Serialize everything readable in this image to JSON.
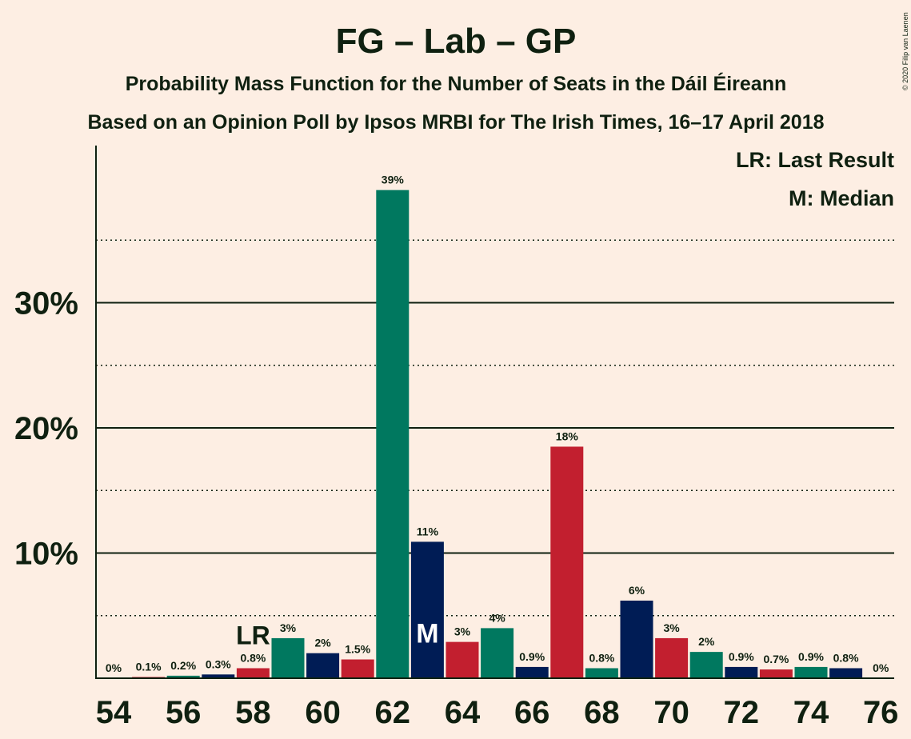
{
  "chart_data": {
    "type": "bar",
    "title": "FG – Lab – GP",
    "subtitle_1": "Probability Mass Function for the Number of Seats in the Dáil Éireann",
    "subtitle_2": "Based on an Opinion Poll by Ipsos MRBI for The Irish Times, 16–17 April 2018",
    "copyright": "© 2020 Filip van Laenen",
    "legend": {
      "lr": "LR: Last Result",
      "m": "M: Median",
      "placement": "top-right"
    },
    "ylim": [
      0,
      42
    ],
    "y_major_ticks": [
      10,
      20,
      30
    ],
    "y_major_labels": [
      "10%",
      "20%",
      "30%"
    ],
    "y_minor_ticks": [
      5,
      15,
      25,
      35
    ],
    "x_ticks": [
      54,
      56,
      58,
      60,
      62,
      64,
      66,
      68,
      70,
      72,
      74,
      76
    ],
    "x_tick_labels": [
      "54",
      "56",
      "58",
      "60",
      "62",
      "64",
      "66",
      "68",
      "70",
      "72",
      "74",
      "76"
    ],
    "bars": [
      {
        "x": 54,
        "value": 0,
        "label": "0%",
        "color": "#00785F"
      },
      {
        "x": 55,
        "value": 0.1,
        "label": "0.1%",
        "color": "#C21F2F"
      },
      {
        "x": 56,
        "value": 0.2,
        "label": "0.2%",
        "color": "#00785F"
      },
      {
        "x": 57,
        "value": 0.3,
        "label": "0.3%",
        "color": "#001C55"
      },
      {
        "x": 58,
        "value": 0.8,
        "label": "0.8%",
        "color": "#C21F2F"
      },
      {
        "x": 59,
        "value": 3.2,
        "label": "3%",
        "color": "#00785F"
      },
      {
        "x": 60,
        "value": 2.0,
        "label": "2%",
        "color": "#001C55"
      },
      {
        "x": 61,
        "value": 1.5,
        "label": "1.5%",
        "color": "#C21F2F"
      },
      {
        "x": 62,
        "value": 39.0,
        "label": "39%",
        "color": "#00785F"
      },
      {
        "x": 63,
        "value": 10.9,
        "label": "11%",
        "color": "#001C55"
      },
      {
        "x": 64,
        "value": 2.9,
        "label": "3%",
        "color": "#C21F2F"
      },
      {
        "x": 65,
        "value": 4.0,
        "label": "4%",
        "color": "#00785F"
      },
      {
        "x": 66,
        "value": 0.9,
        "label": "0.9%",
        "color": "#001C55"
      },
      {
        "x": 67,
        "value": 18.5,
        "label": "18%",
        "color": "#C21F2F"
      },
      {
        "x": 68,
        "value": 0.8,
        "label": "0.8%",
        "color": "#00785F"
      },
      {
        "x": 69,
        "value": 6.2,
        "label": "6%",
        "color": "#001C55"
      },
      {
        "x": 70,
        "value": 3.2,
        "label": "3%",
        "color": "#C21F2F"
      },
      {
        "x": 71,
        "value": 2.1,
        "label": "2%",
        "color": "#00785F"
      },
      {
        "x": 72,
        "value": 0.9,
        "label": "0.9%",
        "color": "#001C55"
      },
      {
        "x": 73,
        "value": 0.7,
        "label": "0.7%",
        "color": "#C21F2F"
      },
      {
        "x": 74,
        "value": 0.9,
        "label": "0.9%",
        "color": "#00785F"
      },
      {
        "x": 75,
        "value": 0.8,
        "label": "0.8%",
        "color": "#001C55"
      },
      {
        "x": 76,
        "value": 0,
        "label": "0%",
        "color": "#C21F2F"
      }
    ],
    "last_result": {
      "x": 58,
      "marker": "LR"
    },
    "median": {
      "x": 63,
      "marker": "M"
    },
    "grid": true,
    "colors": {
      "background": "#FDEEE3",
      "text": "#0F2010",
      "fg": "#00785F",
      "lab": "#C21F2F",
      "gp": "#001C55"
    }
  }
}
